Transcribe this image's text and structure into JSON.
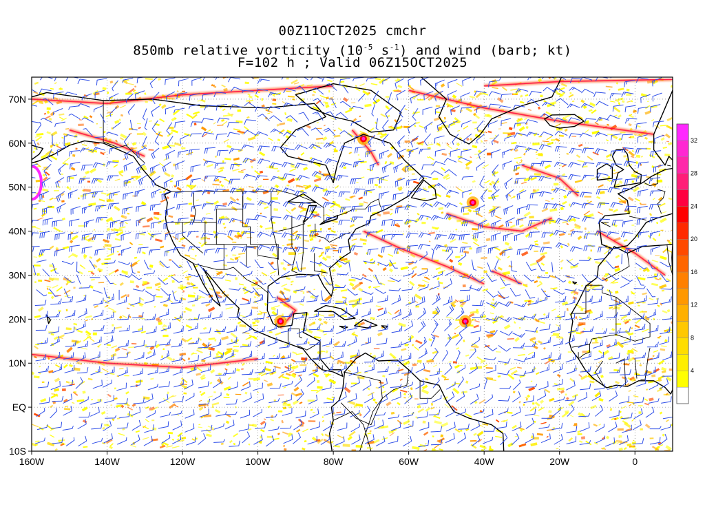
{
  "title": {
    "line1": "00Z11OCT2025 cmchr",
    "line2_pre": "850mb relative vorticity (10",
    "line2_exp1": "-5",
    "line2_mid": " s",
    "line2_exp2": "-1",
    "line2_post": ") and wind (barb; kt)",
    "line3": "F=102 h ; Valid 06Z15OCT2025"
  },
  "map": {
    "lon_range": [
      -160,
      10
    ],
    "lat_range": [
      -10,
      75
    ],
    "lat_ticks": [
      {
        "value": 70,
        "label": "70N"
      },
      {
        "value": 60,
        "label": "60N"
      },
      {
        "value": 50,
        "label": "50N"
      },
      {
        "value": 40,
        "label": "40N"
      },
      {
        "value": 30,
        "label": "30N"
      },
      {
        "value": 20,
        "label": "20N"
      },
      {
        "value": 10,
        "label": "10N"
      },
      {
        "value": 0,
        "label": "EQ"
      },
      {
        "value": -10,
        "label": "10S"
      }
    ],
    "lon_ticks": [
      {
        "value": -160,
        "label": "160W"
      },
      {
        "value": -140,
        "label": "140W"
      },
      {
        "value": -120,
        "label": "120W"
      },
      {
        "value": -100,
        "label": "100W"
      },
      {
        "value": -80,
        "label": "80W"
      },
      {
        "value": -60,
        "label": "60W"
      },
      {
        "value": -40,
        "label": "40W"
      },
      {
        "value": -20,
        "label": "20W"
      },
      {
        "value": 0,
        "label": "0"
      }
    ],
    "barb_color": "#2f4fe8",
    "coast_color": "#000000"
  },
  "colorbar": {
    "levels": [
      "4",
      "8",
      "12",
      "16",
      "20",
      "24",
      "28",
      "32"
    ],
    "colors": [
      "#ffffff",
      "#ffff00",
      "#ffee00",
      "#ffdd00",
      "#ffc800",
      "#ffb000",
      "#ff9800",
      "#ff8000",
      "#ff6600",
      "#ff4a00",
      "#ff2a00",
      "#ff0000",
      "#ff0040",
      "#ff1e78",
      "#ff28aa",
      "#ff28d2",
      "#ff28ff"
    ]
  },
  "features": [
    {
      "name": "vorticity-max-atlantic-tropical-storm",
      "lon": -45,
      "lat": 19.5
    },
    {
      "name": "vorticity-max-north-atlantic-low",
      "lon": -43,
      "lat": 46.5
    },
    {
      "name": "vorticity-max-gulf-of-mexico",
      "lon": -94,
      "lat": 19.5
    },
    {
      "name": "vorticity-max-labrador",
      "lon": -72,
      "lat": 61
    }
  ]
}
